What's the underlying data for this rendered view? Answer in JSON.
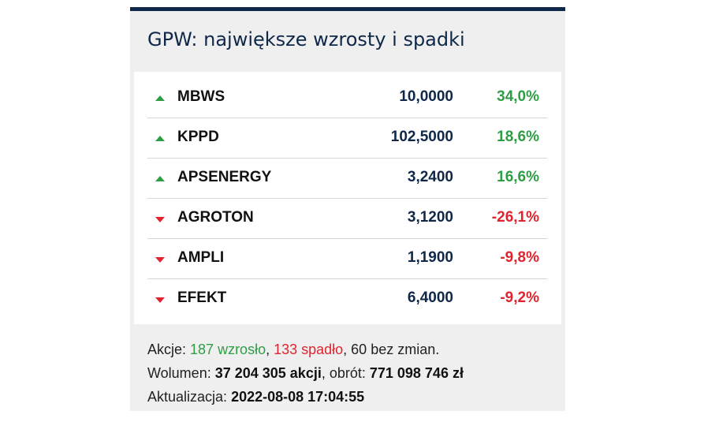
{
  "widget": {
    "title": "GPW: największe wzrosty i spadki"
  },
  "rows": [
    {
      "symbol": "MBWS",
      "price": "10,0000",
      "change": "34,0%",
      "direction": "up"
    },
    {
      "symbol": "KPPD",
      "price": "102,5000",
      "change": "18,6%",
      "direction": "up"
    },
    {
      "symbol": "APSENERGY",
      "price": "3,2400",
      "change": "16,6%",
      "direction": "up"
    },
    {
      "symbol": "AGROTON",
      "price": "3,1200",
      "change": "-26,1%",
      "direction": "down"
    },
    {
      "symbol": "AMPLI",
      "price": "1,1900",
      "change": "-9,8%",
      "direction": "down"
    },
    {
      "symbol": "EFEKT",
      "price": "6,4000",
      "change": "-9,2%",
      "direction": "down"
    }
  ],
  "stats": {
    "shares_label": "Akcje: ",
    "rose": "187 wzrosło",
    "sep1": ", ",
    "fell": "133 spadło",
    "unchanged": ", 60 bez zmian.",
    "volume_label": "Wolumen: ",
    "volume_value": "37 204 305 akcji",
    "turnover_label": ", obrót: ",
    "turnover_value": "771 098 746 zł",
    "update_label": "Aktualizacja: ",
    "update_value": "2022-08-08 17:04:55"
  },
  "colors": {
    "up": "#2e9e44",
    "down": "#e0242f",
    "title": "#0f2748"
  },
  "icons": {
    "up": "arrow-up-icon",
    "down": "arrow-down-icon"
  }
}
